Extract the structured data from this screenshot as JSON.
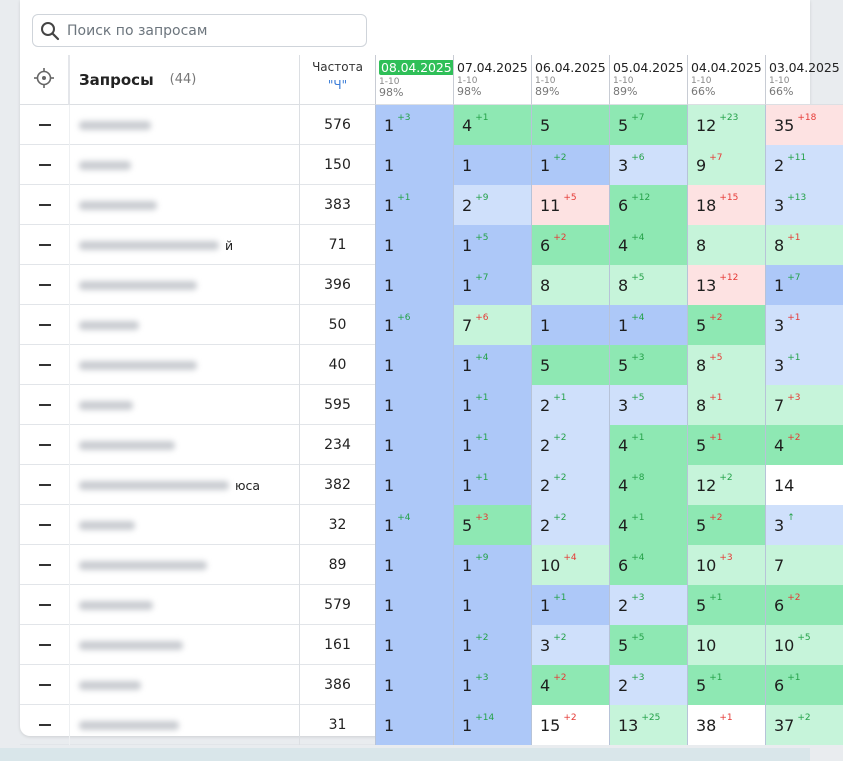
{
  "search": {
    "placeholder": "Поиск по запросам"
  },
  "header": {
    "queries_title": "Запросы",
    "queries_count": "(44)",
    "freq_label": "Частота",
    "freq_type": "\"Ч\""
  },
  "colors": {
    "blue": "#adc8f8",
    "light_blue": "#cfe0fb",
    "green": "#8ee8b3",
    "light_green": "#c6f4da",
    "pink": "#fde2e2",
    "white": "#ffffff",
    "active_date": "#2fbf58"
  },
  "dates": [
    {
      "date": "08.04.2025",
      "range": "1-10",
      "pct": "98%",
      "active": true
    },
    {
      "date": "07.04.2025",
      "range": "1-10",
      "pct": "98%",
      "active": false
    },
    {
      "date": "06.04.2025",
      "range": "1-10",
      "pct": "89%",
      "active": false
    },
    {
      "date": "05.04.2025",
      "range": "1-10",
      "pct": "89%",
      "active": false
    },
    {
      "date": "04.04.2025",
      "range": "1-10",
      "pct": "66%",
      "active": false
    },
    {
      "date": "03.04.2025",
      "range": "1-10",
      "pct": "66%",
      "active": false
    }
  ],
  "rows": [
    {
      "q_tail": "",
      "freq": "576",
      "cells": [
        [
          "1",
          "+3",
          "blue"
        ],
        [
          "4",
          "+1",
          "green"
        ],
        [
          "5",
          "",
          "green"
        ],
        [
          "5",
          "+7",
          "green"
        ],
        [
          "12",
          "+23",
          "light_green"
        ],
        [
          "35",
          "+18",
          "pink"
        ]
      ]
    },
    {
      "q_tail": "",
      "freq": "150",
      "cells": [
        [
          "1",
          "",
          "blue"
        ],
        [
          "1",
          "",
          "blue"
        ],
        [
          "1",
          "+2",
          "blue"
        ],
        [
          "3",
          "+6",
          "light_blue"
        ],
        [
          "9",
          "+7",
          "light_green"
        ],
        [
          "2",
          "+11",
          "light_blue"
        ]
      ]
    },
    {
      "q_tail": "",
      "freq": "383",
      "cells": [
        [
          "1",
          "+1",
          "blue"
        ],
        [
          "2",
          "+9",
          "light_blue"
        ],
        [
          "11",
          "+5",
          "pink"
        ],
        [
          "6",
          "+12",
          "green"
        ],
        [
          "18",
          "+15",
          "pink"
        ],
        [
          "3",
          "+13",
          "light_blue"
        ]
      ]
    },
    {
      "q_tail": "й",
      "freq": "71",
      "cells": [
        [
          "1",
          "",
          "blue"
        ],
        [
          "1",
          "+5",
          "blue"
        ],
        [
          "6",
          "+2",
          "green"
        ],
        [
          "4",
          "+4",
          "green"
        ],
        [
          "8",
          "",
          "light_green"
        ],
        [
          "8",
          "+1",
          "light_green"
        ]
      ]
    },
    {
      "q_tail": "",
      "freq": "396",
      "cells": [
        [
          "1",
          "",
          "blue"
        ],
        [
          "1",
          "+7",
          "blue"
        ],
        [
          "8",
          "",
          "light_green"
        ],
        [
          "8",
          "+5",
          "light_green"
        ],
        [
          "13",
          "+12",
          "pink"
        ],
        [
          "1",
          "+7",
          "blue"
        ]
      ]
    },
    {
      "q_tail": "",
      "freq": "50",
      "cells": [
        [
          "1",
          "+6",
          "blue"
        ],
        [
          "7",
          "+6",
          "light_green"
        ],
        [
          "1",
          "",
          "blue"
        ],
        [
          "1",
          "+4",
          "blue"
        ],
        [
          "5",
          "+2",
          "green"
        ],
        [
          "3",
          "+1",
          "light_blue"
        ]
      ]
    },
    {
      "q_tail": "",
      "freq": "40",
      "cells": [
        [
          "1",
          "",
          "blue"
        ],
        [
          "1",
          "+4",
          "blue"
        ],
        [
          "5",
          "",
          "green"
        ],
        [
          "5",
          "+3",
          "green"
        ],
        [
          "8",
          "+5",
          "light_green"
        ],
        [
          "3",
          "+1",
          "light_blue"
        ]
      ]
    },
    {
      "q_tail": "",
      "freq": "595",
      "cells": [
        [
          "1",
          "",
          "blue"
        ],
        [
          "1",
          "+1",
          "blue"
        ],
        [
          "2",
          "+1",
          "light_blue"
        ],
        [
          "3",
          "+5",
          "light_blue"
        ],
        [
          "8",
          "+1",
          "light_green"
        ],
        [
          "7",
          "+3",
          "light_green"
        ]
      ]
    },
    {
      "q_tail": "",
      "freq": "234",
      "cells": [
        [
          "1",
          "",
          "blue"
        ],
        [
          "1",
          "+1",
          "blue"
        ],
        [
          "2",
          "+2",
          "light_blue"
        ],
        [
          "4",
          "+1",
          "green"
        ],
        [
          "5",
          "+1",
          "green"
        ],
        [
          "4",
          "+2",
          "green"
        ]
      ]
    },
    {
      "q_tail": "юса",
      "freq": "382",
      "cells": [
        [
          "1",
          "",
          "blue"
        ],
        [
          "1",
          "+1",
          "blue"
        ],
        [
          "2",
          "+2",
          "light_blue"
        ],
        [
          "4",
          "+8",
          "green"
        ],
        [
          "12",
          "+2",
          "light_green"
        ],
        [
          "14",
          "",
          "white"
        ]
      ]
    },
    {
      "q_tail": "",
      "freq": "32",
      "cells": [
        [
          "1",
          "+4",
          "blue"
        ],
        [
          "5",
          "+3",
          "green"
        ],
        [
          "2",
          "+2",
          "light_blue"
        ],
        [
          "4",
          "+1",
          "green"
        ],
        [
          "5",
          "+2",
          "green"
        ],
        [
          "3",
          "↑",
          "light_blue"
        ]
      ]
    },
    {
      "q_tail": "",
      "freq": "89",
      "cells": [
        [
          "1",
          "",
          "blue"
        ],
        [
          "1",
          "+9",
          "blue"
        ],
        [
          "10",
          "+4",
          "light_green"
        ],
        [
          "6",
          "+4",
          "green"
        ],
        [
          "10",
          "+3",
          "light_green"
        ],
        [
          "7",
          "",
          "light_green"
        ]
      ]
    },
    {
      "q_tail": "",
      "freq": "579",
      "cells": [
        [
          "1",
          "",
          "blue"
        ],
        [
          "1",
          "",
          "blue"
        ],
        [
          "1",
          "+1",
          "blue"
        ],
        [
          "2",
          "+3",
          "light_blue"
        ],
        [
          "5",
          "+1",
          "green"
        ],
        [
          "6",
          "+2",
          "green"
        ]
      ]
    },
    {
      "q_tail": "",
      "freq": "161",
      "cells": [
        [
          "1",
          "",
          "blue"
        ],
        [
          "1",
          "+2",
          "blue"
        ],
        [
          "3",
          "+2",
          "light_blue"
        ],
        [
          "5",
          "+5",
          "green"
        ],
        [
          "10",
          "",
          "light_green"
        ],
        [
          "10",
          "+5",
          "light_green"
        ]
      ]
    },
    {
      "q_tail": "",
      "freq": "386",
      "cells": [
        [
          "1",
          "",
          "blue"
        ],
        [
          "1",
          "+3",
          "blue"
        ],
        [
          "4",
          "+2",
          "green"
        ],
        [
          "2",
          "+3",
          "light_blue"
        ],
        [
          "5",
          "+1",
          "green"
        ],
        [
          "6",
          "+1",
          "green"
        ]
      ]
    },
    {
      "q_tail": "",
      "freq": "31",
      "cells": [
        [
          "1",
          "",
          "blue"
        ],
        [
          "1",
          "+14",
          "blue"
        ],
        [
          "15",
          "+2",
          "white"
        ],
        [
          "13",
          "+25",
          "light_green"
        ],
        [
          "38",
          "+1",
          "white"
        ],
        [
          "37",
          "+2",
          "light_green"
        ]
      ]
    }
  ]
}
